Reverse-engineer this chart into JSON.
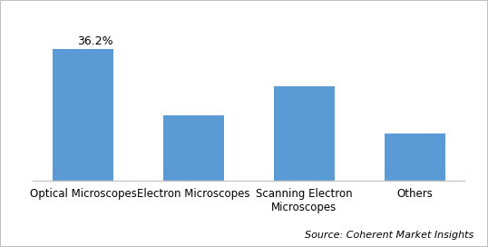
{
  "categories": [
    "Optical Microscopes",
    "Electron Microscopes",
    "Scanning Electron\nMicroscopes",
    "Others"
  ],
  "values": [
    36.2,
    18.0,
    26.0,
    13.0
  ],
  "bar_color": "#5B9BD5",
  "annotation_label": "36.2%",
  "annotation_index": 0,
  "source_text": "Source: Coherent Market Insights",
  "ylim": [
    0,
    44
  ],
  "bar_width": 0.55,
  "background_color": "#ffffff",
  "label_fontsize": 8.5,
  "annotation_fontsize": 9,
  "source_fontsize": 8,
  "border_color": "#c0c0c0",
  "spine_bottom_color": "#c8c8c8"
}
